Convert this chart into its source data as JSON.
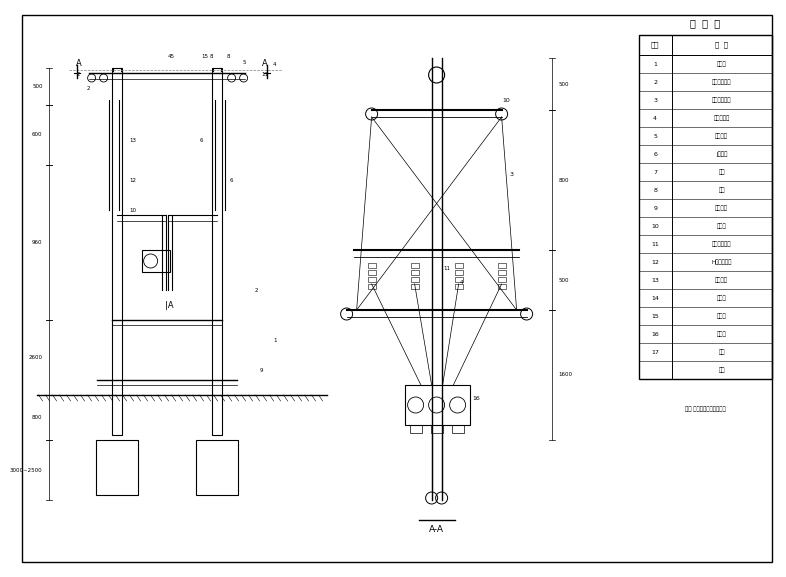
{
  "bg_color": "#ffffff",
  "line_color": "#000000",
  "title": "材  料  表",
  "table_headers": [
    "序号",
    "名 称"
  ],
  "table_rows": [
    [
      "1",
      "支架件"
    ],
    [
      "2",
      "钢管直管组件"
    ],
    [
      "3",
      "钢制方支撑架"
    ],
    [
      "4",
      "接箱底座套"
    ],
    [
      "5",
      "防氧销售"
    ],
    [
      "6",
      "J型抱箍"
    ],
    [
      "7",
      "上架"
    ],
    [
      "8",
      "下板"
    ],
    [
      "9",
      "接地装置"
    ],
    [
      "10",
      "抱夹卡"
    ],
    [
      "11",
      "新式电缆子架"
    ],
    [
      "12",
      "H式电缆子架"
    ],
    [
      "13",
      "剥角河套"
    ],
    [
      "14",
      "剥导层"
    ],
    [
      "15",
      "剥校线"
    ],
    [
      "16",
      "测器头"
    ],
    [
      "17",
      "其他"
    ],
    [
      "",
      "图纸"
    ]
  ],
  "note": "说明 具有用关少量标图安表",
  "dim_labels_left": [
    "500",
    "600",
    "960",
    "2600",
    "800",
    "3000~2500"
  ],
  "dim_labels_right": [
    "500",
    "800",
    "500",
    "1600"
  ]
}
